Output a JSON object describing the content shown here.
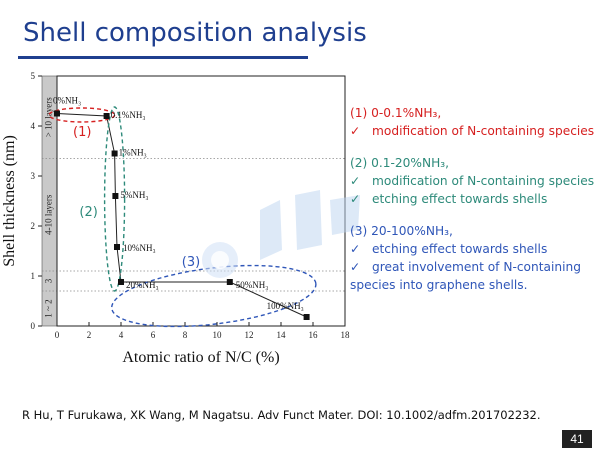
{
  "slide": {
    "title": "Shell composition analysis",
    "reference": "R Hu, T Furukawa, XK Wang, M Nagatsu. Adv Funct Mater. DOI: 10.1002/adfm.201702232.",
    "page_number": "41"
  },
  "notes": [
    {
      "color": "#d62020",
      "head": "(1) 0-0.1%NH₃,",
      "bullets": [
        "modification of N-containing species"
      ]
    },
    {
      "color": "#2d8a7a",
      "head": "(2) 0.1-20%NH₃,",
      "bullets": [
        "modification of N-containing species",
        "etching effect towards shells"
      ]
    },
    {
      "color": "#2f56b8",
      "head": "(3) 20-100%NH₃,",
      "bullets": [
        "etching effect towards shells",
        "great involvement of N-containing species into graphene shells."
      ]
    }
  ],
  "check_mark": "✓",
  "chart_data": {
    "type": "line",
    "xlabel": "Atomic ratio of N/C (%)",
    "ylabel": "Shell thickness (nm)",
    "xlim": [
      0,
      18
    ],
    "ylim": [
      0,
      5
    ],
    "xticks": [
      "0",
      "2",
      "4",
      "6",
      "8",
      "10",
      "12",
      "14",
      "16",
      "18"
    ],
    "yticks": [
      "0",
      "1",
      "2",
      "3",
      "4",
      "5"
    ],
    "points": [
      {
        "x": 0.0,
        "y": 4.25,
        "label": "0%NH₃"
      },
      {
        "x": 3.1,
        "y": 4.2,
        "label": "0.1%NH₃"
      },
      {
        "x": 3.6,
        "y": 3.45,
        "label": "1%NH₃"
      },
      {
        "x": 3.65,
        "y": 2.6,
        "label": "5%NH₃"
      },
      {
        "x": 3.75,
        "y": 1.58,
        "label": "10%NH₃"
      },
      {
        "x": 4.0,
        "y": 0.88,
        "label": "20%NH₃"
      },
      {
        "x": 10.8,
        "y": 0.88,
        "label": "50%NH₃"
      },
      {
        "x": 15.6,
        "y": 0.18,
        "label": "100%NH₃"
      }
    ],
    "regions": [
      {
        "label": "1 ~ 2",
        "y0": 0,
        "y1": 0.7
      },
      {
        "label": "3",
        "y0": 0.7,
        "y1": 1.1
      },
      {
        "label": "4-10 layers",
        "y0": 1.1,
        "y1": 3.35
      },
      {
        "label": "> 10 layers",
        "y0": 3.35,
        "y1": 5
      }
    ],
    "groups": [
      {
        "label": "(1)",
        "color": "#d62020"
      },
      {
        "label": "(2)",
        "color": "#2d8a7a"
      },
      {
        "label": "(3)",
        "color": "#2f56b8"
      }
    ]
  }
}
